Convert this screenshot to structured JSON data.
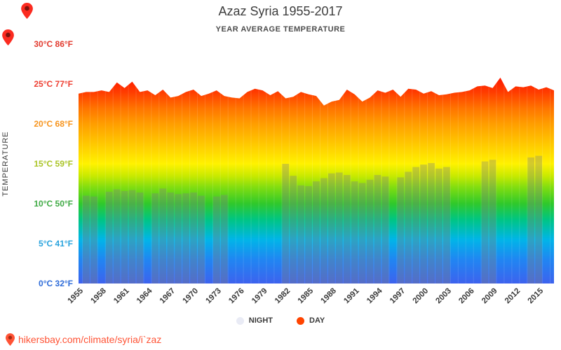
{
  "page": {
    "title": "Azaz Syria 1955-2017",
    "subtitle": "YEAR AVERAGE TEMPERATURE",
    "footer": "hikersbay.com/climate/syria/i`zaz"
  },
  "legend": {
    "night_label": "NIGHT",
    "day_label": "DAY",
    "night_color": "#e9ebf5",
    "day_color": "#ff4400"
  },
  "axis": {
    "y_title": "TEMPERATURE",
    "y_ticks": [
      {
        "c": "30°C",
        "f": "86°F",
        "temp": 30,
        "color": "#e23a2e"
      },
      {
        "c": "25°C",
        "f": "77°F",
        "temp": 25,
        "color": "#ee3f32"
      },
      {
        "c": "20°C",
        "f": "68°F",
        "temp": 20,
        "color": "#f7941d"
      },
      {
        "c": "15°C",
        "f": "59°F",
        "temp": 15,
        "color": "#aac426"
      },
      {
        "c": "10°C",
        "f": "50°F",
        "temp": 10,
        "color": "#3faa44"
      },
      {
        "c": "5°C",
        "f": "41°F",
        "temp": 5,
        "color": "#29a3dd"
      },
      {
        "c": "0°C",
        "f": "32°F",
        "temp": 0,
        "color": "#2d6bd8"
      }
    ],
    "x_ticks": [
      1955,
      1958,
      1961,
      1964,
      1967,
      1970,
      1973,
      1976,
      1979,
      1982,
      1985,
      1988,
      1991,
      1994,
      1997,
      2000,
      2003,
      2006,
      2009,
      2012,
      2015
    ]
  },
  "chart_data": {
    "type": "area",
    "title": "Azaz Syria 1955-2017",
    "subtitle": "YEAR AVERAGE TEMPERATURE",
    "ylabel": "TEMPERATURE",
    "ylim": [
      0,
      30
    ],
    "x": [
      1955,
      1956,
      1957,
      1958,
      1959,
      1960,
      1961,
      1962,
      1963,
      1964,
      1965,
      1966,
      1967,
      1968,
      1969,
      1970,
      1971,
      1972,
      1973,
      1974,
      1975,
      1976,
      1977,
      1978,
      1979,
      1980,
      1981,
      1982,
      1983,
      1984,
      1985,
      1986,
      1987,
      1988,
      1989,
      1990,
      1991,
      1992,
      1993,
      1994,
      1995,
      1996,
      1997,
      1998,
      1999,
      2000,
      2001,
      2002,
      2003,
      2004,
      2005,
      2006,
      2007,
      2008,
      2009,
      2010,
      2011,
      2012,
      2013,
      2014,
      2015,
      2016,
      2017
    ],
    "series": [
      {
        "name": "DAY",
        "values": [
          23.8,
          24.0,
          24.0,
          24.2,
          24.0,
          25.2,
          24.5,
          25.3,
          24.0,
          24.2,
          23.6,
          24.3,
          23.3,
          23.5,
          24.0,
          24.3,
          23.5,
          23.8,
          24.2,
          23.5,
          23.3,
          23.2,
          24.0,
          24.4,
          24.2,
          23.6,
          24.1,
          23.2,
          23.4,
          24.0,
          23.7,
          23.5,
          22.3,
          22.8,
          23.0,
          24.3,
          23.7,
          22.8,
          23.3,
          24.2,
          23.9,
          24.3,
          23.4,
          24.4,
          24.3,
          23.8,
          24.1,
          23.6,
          23.7,
          23.9,
          24.0,
          24.2,
          24.7,
          24.8,
          24.5,
          25.8,
          24.0,
          24.7,
          24.6,
          24.8,
          24.3,
          24.6,
          24.2
        ]
      },
      {
        "name": "NIGHT",
        "values": [
          null,
          11.0,
          10.9,
          null,
          11.5,
          11.8,
          11.6,
          11.7,
          11.4,
          null,
          11.3,
          11.9,
          11.4,
          11.2,
          11.3,
          11.4,
          11.0,
          null,
          10.9,
          11.1,
          null,
          null,
          null,
          null,
          null,
          null,
          null,
          15.0,
          13.5,
          12.3,
          12.2,
          12.8,
          13.2,
          13.8,
          13.9,
          13.6,
          12.8,
          12.6,
          13.0,
          13.6,
          13.4,
          null,
          13.3,
          14.0,
          14.6,
          14.9,
          15.1,
          14.4,
          14.6,
          null,
          null,
          null,
          null,
          15.3,
          15.5,
          null,
          null,
          null,
          null,
          15.8,
          16.0,
          null,
          null
        ]
      }
    ],
    "gradient": [
      {
        "temp": 26,
        "color": "#ff1400"
      },
      {
        "temp": 24,
        "color": "#ff3c00"
      },
      {
        "temp": 22,
        "color": "#ff7300"
      },
      {
        "temp": 20,
        "color": "#ff9e00"
      },
      {
        "temp": 17.5,
        "color": "#ffc800"
      },
      {
        "temp": 15,
        "color": "#fff200"
      },
      {
        "temp": 13.5,
        "color": "#c9ea00"
      },
      {
        "temp": 12,
        "color": "#7fdd10"
      },
      {
        "temp": 10,
        "color": "#2fc92b"
      },
      {
        "temp": 8,
        "color": "#00c583"
      },
      {
        "temp": 5.5,
        "color": "#00b5e8"
      },
      {
        "temp": 3,
        "color": "#2086f2"
      },
      {
        "temp": 0,
        "color": "#3d62ee"
      }
    ],
    "night_overlay": "rgba(128,128,128,0.35)",
    "legend_position": "bottom",
    "grid": false
  }
}
